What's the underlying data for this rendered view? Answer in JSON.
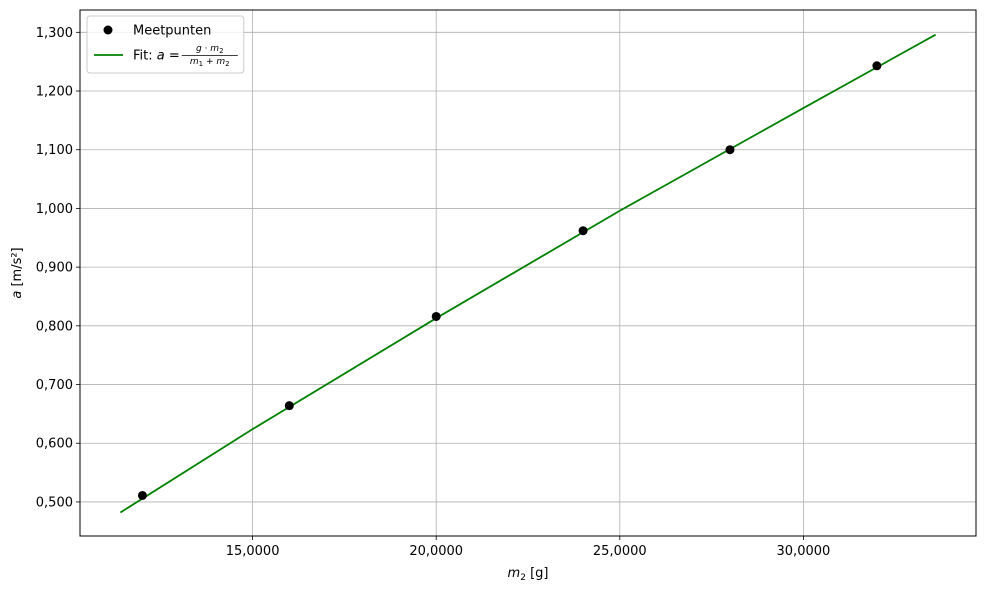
{
  "chart_data": {
    "type": "scatter",
    "xlabel": {
      "symbol": "m",
      "subscript": "2",
      "unit": " [g]"
    },
    "ylabel": {
      "symbol": "a",
      "unit": " [m/s²]"
    },
    "xlim": [
      10300,
      34700
    ],
    "ylim": [
      0.442,
      1.338
    ],
    "x_ticks": [
      15000,
      20000,
      25000,
      30000
    ],
    "x_tick_labels": [
      "15,0000",
      "20,0000",
      "25,0000",
      "30,0000"
    ],
    "y_ticks": [
      0.5,
      0.6,
      0.7,
      0.8,
      0.9,
      1.0,
      1.1,
      1.2,
      1.3
    ],
    "y_tick_labels": [
      "0,500",
      "0,600",
      "0,700",
      "0,800",
      "0,900",
      "1,000",
      "1,100",
      "1,200",
      "1,300"
    ],
    "grid": true,
    "legend_position": "top-left",
    "series": [
      {
        "name": "Meetpunten",
        "kind": "scatter",
        "color": "#000000",
        "x": [
          12000,
          16000,
          20000,
          24000,
          28000,
          32000
        ],
        "y": [
          0.511,
          0.664,
          0.816,
          0.962,
          1.1,
          1.243
        ]
      },
      {
        "kind": "line",
        "color": "#008000",
        "x": [
          11400,
          15000,
          20000,
          25000,
          30000,
          33600
        ],
        "y": [
          0.482,
          0.624,
          0.813,
          0.996,
          1.171,
          1.296
        ]
      }
    ],
    "legend_fit": {
      "prefix": "Fit: ",
      "lhs": "a",
      "equals": " = ",
      "numerator_g": "g",
      "dot": " · ",
      "numerator_m": "m",
      "numerator_sub": "2",
      "denominator_m1": "m",
      "denominator_sub1": "1",
      "plus": " + ",
      "denominator_m2": "m",
      "denominator_sub2": "2"
    }
  }
}
